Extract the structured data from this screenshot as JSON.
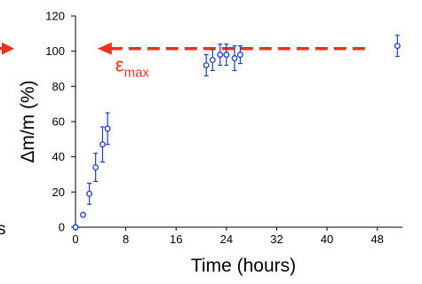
{
  "chart_data": {
    "type": "scatter",
    "xlabel": "Time (hours)",
    "ylabel": "Δm/m (%)",
    "xlim": [
      0,
      52
    ],
    "ylim": [
      0,
      120
    ],
    "xticks": [
      0,
      8,
      16,
      24,
      32,
      40,
      48
    ],
    "yticks": [
      0,
      20,
      40,
      60,
      80,
      100,
      120
    ],
    "grid": false,
    "series": [
      {
        "marker": "open-circle",
        "color": "#1f3fbf",
        "points": [
          {
            "x": 0,
            "y": 0,
            "err": 0
          },
          {
            "x": 1.2,
            "y": 7,
            "err": 1
          },
          {
            "x": 2.2,
            "y": 19,
            "err": 6
          },
          {
            "x": 3.2,
            "y": 34,
            "err": 8
          },
          {
            "x": 4.3,
            "y": 47,
            "err": 10
          },
          {
            "x": 5.1,
            "y": 56,
            "err": 9
          },
          {
            "x": 20.8,
            "y": 92,
            "err": 6
          },
          {
            "x": 21.8,
            "y": 95,
            "err": 6
          },
          {
            "x": 23.0,
            "y": 98,
            "err": 6
          },
          {
            "x": 24.0,
            "y": 98,
            "err": 6
          },
          {
            "x": 25.3,
            "y": 96,
            "err": 7
          },
          {
            "x": 26.2,
            "y": 98,
            "err": 5
          },
          {
            "x": 51.2,
            "y": 103,
            "err": 6
          }
        ]
      }
    ],
    "annotation": {
      "label": "ε",
      "subscript": "max",
      "color": "#e8331e",
      "line_y": 101.5,
      "x_from": 3.5,
      "x_to": 46.5
    },
    "left_cut": {
      "arrow_y": 101.5,
      "text": "s"
    }
  }
}
